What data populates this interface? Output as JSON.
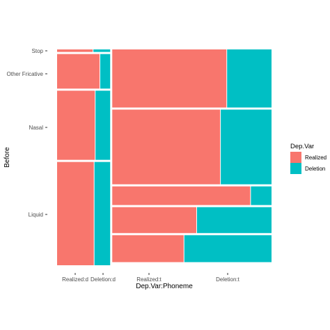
{
  "chart_data": {
    "type": "mosaic",
    "xlabel": "Dep.Var:Phoneme",
    "ylabel": "Before",
    "x_tick_labels": [
      "Realized:d",
      "Deletion:d",
      "Realized:t",
      "Deletion:t"
    ],
    "y_tick_labels": [
      "Stop",
      "Other Fricative",
      "Nasal",
      "Liquid"
    ],
    "legend": {
      "title": "Dep.Var",
      "position": "right",
      "entries": [
        {
          "label": "Realized",
          "color": "#F8766D"
        },
        {
          "label": "Deletion",
          "color": "#00BFC4"
        }
      ]
    },
    "phonemes": [
      {
        "phoneme": "d",
        "width_share": 0.25,
        "groups": [
          {
            "before": "Stop",
            "height_share": 0.012,
            "realized_share": 0.68
          },
          {
            "before": "Other Fricative",
            "height_share": 0.165,
            "realized_share": 0.81
          },
          {
            "before": "Nasal",
            "height_share": 0.33,
            "realized_share": 0.72
          },
          {
            "before": "Liquid",
            "height_share": 0.493,
            "realized_share": 0.7
          }
        ]
      },
      {
        "phoneme": "t",
        "width_share": 0.75,
        "groups": [
          {
            "before": "Stop",
            "height_share": 0.28,
            "realized_share": 0.72
          },
          {
            "before": "Nasal",
            "height_share": 0.36,
            "realized_share": 0.68
          },
          {
            "before": "Other Fricative",
            "height_share": 0.09,
            "realized_share": 0.87
          },
          {
            "before": "Liquid",
            "height_share": 0.125,
            "realized_share": 0.53
          },
          {
            "before": "Liquid",
            "height_share": 0.13,
            "realized_share": 0.45
          }
        ]
      }
    ],
    "grid": false
  }
}
